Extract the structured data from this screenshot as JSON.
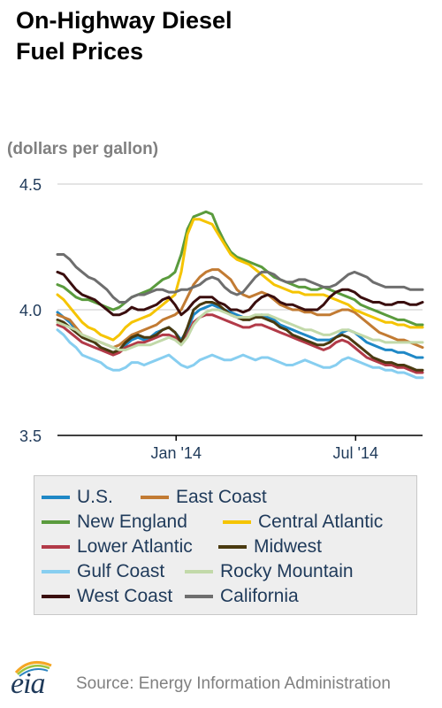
{
  "title_line1": "On-Highway Diesel",
  "title_line2": "Fuel Prices",
  "units": "(dollars per gallon)",
  "source": "Source: Energy Information Administration",
  "logo": {
    "text": "eia",
    "icon": "eia-sun-arc-logo-icon"
  },
  "chart_data": {
    "type": "line",
    "ylabel": "(dollars per gallon)",
    "ylim": [
      3.5,
      4.5
    ],
    "yticks": [
      {
        "value": 3.5,
        "label": "3.5"
      },
      {
        "value": 4.0,
        "label": "4.0"
      },
      {
        "value": 4.5,
        "label": "4.5"
      }
    ],
    "xlim": [
      0,
      60
    ],
    "xticks": [
      {
        "value": 19.5,
        "label": "Jan '14"
      },
      {
        "value": 49,
        "label": "Jul '14"
      }
    ],
    "grid": "horizontal",
    "legend_position": "bottom",
    "series": [
      {
        "name": "U.S.",
        "color": "#1f88c6",
        "values": [
          3.99,
          3.97,
          3.95,
          3.92,
          3.89,
          3.88,
          3.87,
          3.85,
          3.84,
          3.83,
          3.84,
          3.86,
          3.88,
          3.89,
          3.88,
          3.89,
          3.91,
          3.92,
          3.93,
          3.91,
          3.88,
          3.92,
          3.98,
          4.0,
          4.01,
          4.02,
          4.01,
          4.0,
          3.99,
          3.98,
          3.97,
          3.96,
          3.97,
          3.98,
          3.97,
          3.96,
          3.94,
          3.93,
          3.92,
          3.91,
          3.9,
          3.89,
          3.88,
          3.88,
          3.88,
          3.89,
          3.91,
          3.92,
          3.91,
          3.89,
          3.87,
          3.86,
          3.85,
          3.84,
          3.84,
          3.83,
          3.83,
          3.82,
          3.81,
          3.81
        ]
      },
      {
        "name": "East Coast",
        "color": "#c27b33",
        "values": [
          3.98,
          3.97,
          3.96,
          3.93,
          3.9,
          3.89,
          3.88,
          3.87,
          3.86,
          3.85,
          3.86,
          3.88,
          3.9,
          3.91,
          3.92,
          3.93,
          3.94,
          3.96,
          3.97,
          3.98,
          4.0,
          4.05,
          4.1,
          4.13,
          4.15,
          4.16,
          4.16,
          4.14,
          4.12,
          4.08,
          4.06,
          4.05,
          4.06,
          4.07,
          4.06,
          4.04,
          4.02,
          4.01,
          4.0,
          4.0,
          3.99,
          3.99,
          3.98,
          3.98,
          3.98,
          3.99,
          4.0,
          4.0,
          3.99,
          3.97,
          3.95,
          3.93,
          3.91,
          3.9,
          3.89,
          3.88,
          3.88,
          3.87,
          3.86,
          3.85
        ]
      },
      {
        "name": "New England",
        "color": "#5a9b3d",
        "values": [
          4.1,
          4.09,
          4.07,
          4.05,
          4.04,
          4.04,
          4.03,
          4.02,
          4.01,
          4.0,
          4.01,
          4.03,
          4.05,
          4.06,
          4.07,
          4.08,
          4.1,
          4.12,
          4.13,
          4.15,
          4.22,
          4.32,
          4.37,
          4.38,
          4.39,
          4.38,
          4.32,
          4.27,
          4.23,
          4.21,
          4.2,
          4.19,
          4.18,
          4.17,
          4.15,
          4.13,
          4.12,
          4.11,
          4.1,
          4.09,
          4.09,
          4.08,
          4.08,
          4.09,
          4.08,
          4.07,
          4.06,
          4.05,
          4.04,
          4.02,
          4.01,
          4.0,
          3.99,
          3.98,
          3.97,
          3.96,
          3.96,
          3.95,
          3.94,
          3.94
        ]
      },
      {
        "name": "Central Atlantic",
        "color": "#f5c400",
        "values": [
          4.06,
          4.04,
          4.01,
          3.98,
          3.95,
          3.93,
          3.92,
          3.9,
          3.89,
          3.88,
          3.9,
          3.93,
          3.95,
          3.96,
          3.97,
          3.98,
          4.0,
          4.02,
          4.04,
          4.06,
          4.15,
          4.3,
          4.36,
          4.36,
          4.35,
          4.34,
          4.3,
          4.26,
          4.22,
          4.2,
          4.19,
          4.18,
          4.16,
          4.14,
          4.12,
          4.1,
          4.09,
          4.08,
          4.07,
          4.07,
          4.06,
          4.06,
          4.06,
          4.06,
          4.05,
          4.04,
          4.03,
          4.02,
          4.0,
          3.99,
          3.98,
          3.97,
          3.96,
          3.95,
          3.95,
          3.94,
          3.94,
          3.93,
          3.93,
          3.93
        ]
      },
      {
        "name": "Lower Atlantic",
        "color": "#b23a48",
        "values": [
          3.94,
          3.93,
          3.91,
          3.89,
          3.87,
          3.86,
          3.85,
          3.84,
          3.83,
          3.82,
          3.83,
          3.85,
          3.86,
          3.87,
          3.87,
          3.88,
          3.89,
          3.9,
          3.9,
          3.89,
          3.87,
          3.9,
          3.95,
          3.97,
          3.98,
          3.98,
          3.97,
          3.96,
          3.95,
          3.94,
          3.93,
          3.93,
          3.94,
          3.94,
          3.93,
          3.92,
          3.91,
          3.9,
          3.89,
          3.88,
          3.87,
          3.86,
          3.85,
          3.84,
          3.85,
          3.87,
          3.88,
          3.87,
          3.85,
          3.83,
          3.81,
          3.8,
          3.79,
          3.78,
          3.78,
          3.77,
          3.77,
          3.76,
          3.75,
          3.75
        ]
      },
      {
        "name": "Midwest",
        "color": "#4a3a10",
        "values": [
          3.96,
          3.95,
          3.93,
          3.91,
          3.89,
          3.88,
          3.87,
          3.85,
          3.84,
          3.83,
          3.84,
          3.87,
          3.89,
          3.9,
          3.89,
          3.89,
          3.9,
          3.92,
          3.93,
          3.91,
          3.87,
          3.93,
          4.0,
          4.02,
          4.03,
          4.03,
          4.02,
          4.0,
          3.98,
          3.97,
          3.96,
          3.96,
          3.97,
          3.97,
          3.96,
          3.95,
          3.93,
          3.92,
          3.9,
          3.89,
          3.88,
          3.87,
          3.86,
          3.86,
          3.87,
          3.89,
          3.9,
          3.89,
          3.87,
          3.85,
          3.83,
          3.81,
          3.8,
          3.79,
          3.79,
          3.78,
          3.78,
          3.77,
          3.76,
          3.76
        ]
      },
      {
        "name": "Gulf Coast",
        "color": "#87cef0",
        "values": [
          3.92,
          3.9,
          3.87,
          3.85,
          3.82,
          3.81,
          3.8,
          3.79,
          3.77,
          3.76,
          3.76,
          3.77,
          3.79,
          3.79,
          3.78,
          3.79,
          3.8,
          3.81,
          3.82,
          3.8,
          3.78,
          3.77,
          3.78,
          3.8,
          3.81,
          3.82,
          3.81,
          3.8,
          3.8,
          3.81,
          3.82,
          3.81,
          3.8,
          3.81,
          3.81,
          3.8,
          3.79,
          3.78,
          3.78,
          3.79,
          3.8,
          3.79,
          3.78,
          3.77,
          3.77,
          3.78,
          3.8,
          3.81,
          3.8,
          3.79,
          3.78,
          3.77,
          3.77,
          3.76,
          3.76,
          3.75,
          3.75,
          3.74,
          3.73,
          3.73
        ]
      },
      {
        "name": "Rocky Mountain",
        "color": "#c2d9a9",
        "values": [
          3.95,
          3.94,
          3.93,
          3.92,
          3.9,
          3.89,
          3.88,
          3.87,
          3.86,
          3.85,
          3.84,
          3.84,
          3.85,
          3.86,
          3.86,
          3.86,
          3.87,
          3.88,
          3.89,
          3.88,
          3.86,
          3.89,
          3.94,
          3.97,
          3.99,
          4.0,
          4.0,
          3.99,
          3.98,
          3.97,
          3.97,
          3.97,
          3.98,
          3.98,
          3.98,
          3.97,
          3.96,
          3.95,
          3.94,
          3.93,
          3.92,
          3.92,
          3.91,
          3.9,
          3.9,
          3.91,
          3.92,
          3.92,
          3.91,
          3.9,
          3.89,
          3.88,
          3.88,
          3.87,
          3.87,
          3.87,
          3.87,
          3.87,
          3.87,
          3.87
        ]
      },
      {
        "name": "West Coast",
        "color": "#3a0e0e",
        "values": [
          4.15,
          4.14,
          4.11,
          4.08,
          4.06,
          4.05,
          4.04,
          4.02,
          4.0,
          3.98,
          3.98,
          3.99,
          4.01,
          4.0,
          4.0,
          4.01,
          4.02,
          4.04,
          4.05,
          4.02,
          3.98,
          4.0,
          4.03,
          4.05,
          4.05,
          4.05,
          4.03,
          4.02,
          4.0,
          4.0,
          3.99,
          4.0,
          4.03,
          4.05,
          4.06,
          4.05,
          4.03,
          4.02,
          4.02,
          4.01,
          4.0,
          4.0,
          4.0,
          4.02,
          4.05,
          4.07,
          4.08,
          4.08,
          4.07,
          4.05,
          4.04,
          4.03,
          4.03,
          4.02,
          4.02,
          4.03,
          4.03,
          4.02,
          4.02,
          4.03
        ]
      },
      {
        "name": "California",
        "color": "#6e6e6e",
        "values": [
          4.22,
          4.22,
          4.2,
          4.17,
          4.15,
          4.13,
          4.12,
          4.1,
          4.08,
          4.05,
          4.03,
          4.03,
          4.05,
          4.06,
          4.06,
          4.07,
          4.08,
          4.08,
          4.07,
          4.07,
          4.08,
          4.08,
          4.09,
          4.1,
          4.12,
          4.13,
          4.12,
          4.09,
          4.07,
          4.06,
          4.07,
          4.1,
          4.13,
          4.15,
          4.15,
          4.14,
          4.12,
          4.11,
          4.11,
          4.12,
          4.12,
          4.11,
          4.1,
          4.09,
          4.09,
          4.1,
          4.12,
          4.14,
          4.15,
          4.14,
          4.13,
          4.11,
          4.1,
          4.09,
          4.09,
          4.09,
          4.09,
          4.08,
          4.08,
          4.08
        ]
      }
    ]
  }
}
